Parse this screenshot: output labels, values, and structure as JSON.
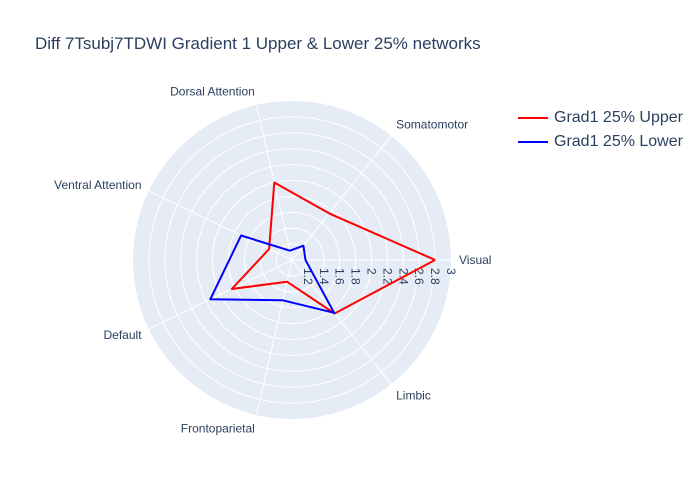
{
  "chart_data": {
    "type": "radar",
    "title": "Diff 7Tsubj7TDWI Gradient 1 Upper & Lower 25% networks",
    "categories": [
      "Visual",
      "Somatomotor",
      "Dorsal Attention",
      "Ventral Attention",
      "Default",
      "Frontoparietal",
      "Limbic"
    ],
    "radial_range": [
      1.0,
      3.0
    ],
    "radial_ticks": [
      "1.2",
      "1.4",
      "1.6",
      "1.8",
      "2",
      "2.2",
      "2.4",
      "2.6",
      "2.8",
      "3"
    ],
    "series": [
      {
        "name": "Grad1 25% Upper",
        "color": "#ff0000",
        "values": [
          2.8,
          1.75,
          2.0,
          1.32,
          1.84,
          1.28,
          1.86
        ]
      },
      {
        "name": "Grad1 25% Lower",
        "color": "#0000ff",
        "values": [
          1.17,
          1.23,
          1.12,
          1.71,
          2.14,
          1.52,
          1.85
        ]
      }
    ],
    "legend_position": "top-right",
    "grid": true
  }
}
